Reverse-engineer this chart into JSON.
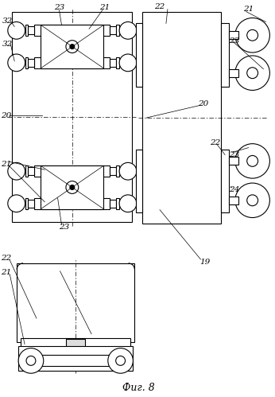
{
  "title": "Фиг. 8",
  "bg_color": "#ffffff",
  "line_color": "#000000",
  "fig_width": 3.46,
  "fig_height": 4.99,
  "dpi": 100
}
